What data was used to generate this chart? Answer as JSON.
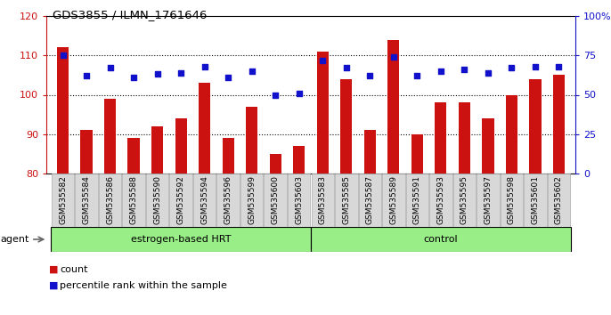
{
  "title": "GDS3855 / ILMN_1761646",
  "categories": [
    "GSM535582",
    "GSM535584",
    "GSM535586",
    "GSM535588",
    "GSM535590",
    "GSM535592",
    "GSM535594",
    "GSM535596",
    "GSM535599",
    "GSM535600",
    "GSM535603",
    "GSM535583",
    "GSM535585",
    "GSM535587",
    "GSM535589",
    "GSM535591",
    "GSM535593",
    "GSM535595",
    "GSM535597",
    "GSM535598",
    "GSM535601",
    "GSM535602"
  ],
  "bar_values": [
    112,
    91,
    99,
    89,
    92,
    94,
    103,
    89,
    97,
    85,
    87,
    111,
    104,
    91,
    114,
    90,
    98,
    98,
    94,
    100,
    104,
    105
  ],
  "dot_values": [
    75,
    62,
    67,
    61,
    63,
    64,
    68,
    61,
    65,
    50,
    51,
    72,
    67,
    62,
    74,
    62,
    65,
    66,
    64,
    67,
    68,
    68
  ],
  "bar_color": "#cc1111",
  "dot_color": "#1111cc",
  "ylim_left": [
    80,
    120
  ],
  "ylim_right": [
    0,
    100
  ],
  "yticks_left": [
    80,
    90,
    100,
    110,
    120
  ],
  "yticks_right": [
    0,
    25,
    50,
    75,
    100
  ],
  "ytick_labels_right": [
    "0",
    "25",
    "50",
    "75",
    "100%"
  ],
  "group1_label": "estrogen-based HRT",
  "group2_label": "control",
  "group1_count": 11,
  "group2_count": 11,
  "agent_label": "agent",
  "legend_bar_label": "count",
  "legend_dot_label": "percentile rank within the sample",
  "background_color": "#ffffff",
  "plot_bg_color": "#ffffff",
  "group_bg_color": "#99ee88",
  "xticklabel_bg": "#d8d8d8"
}
